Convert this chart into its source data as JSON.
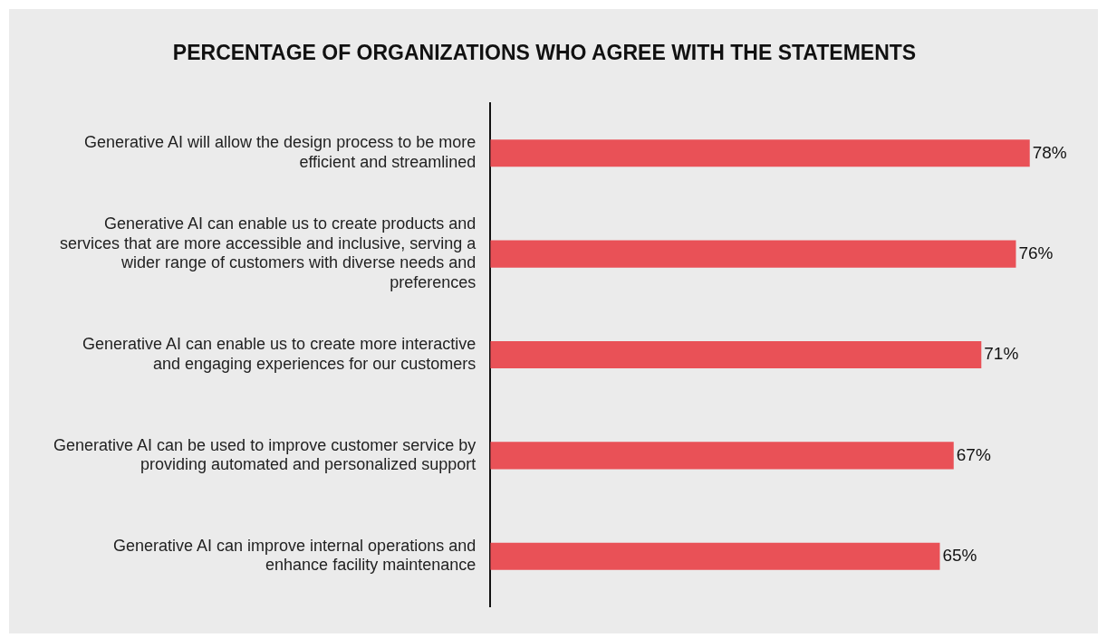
{
  "chart_data": {
    "type": "bar",
    "orientation": "horizontal",
    "title": "PERCENTAGE OF ORGANIZATIONS WHO AGREE WITH THE STATEMENTS",
    "categories": [
      "Generative AI will allow the design process to be more efficient and streamlined",
      "Generative AI can enable us to create products and services that are more accessible and inclusive, serving a wider range of customers with diverse needs and preferences",
      "Generative AI can enable us to create more interactive and engaging experiences for our customers",
      "Generative AI can be used to improve customer service by providing automated and personalized support",
      "Generative AI can improve internal operations and enhance facility maintenance"
    ],
    "values": [
      78,
      76,
      71,
      67,
      65
    ],
    "value_labels": [
      "78%",
      "76%",
      "71%",
      "67%",
      "65%"
    ],
    "color": "#e95157",
    "grid": false,
    "legend": false,
    "tick_labels": "y"
  }
}
